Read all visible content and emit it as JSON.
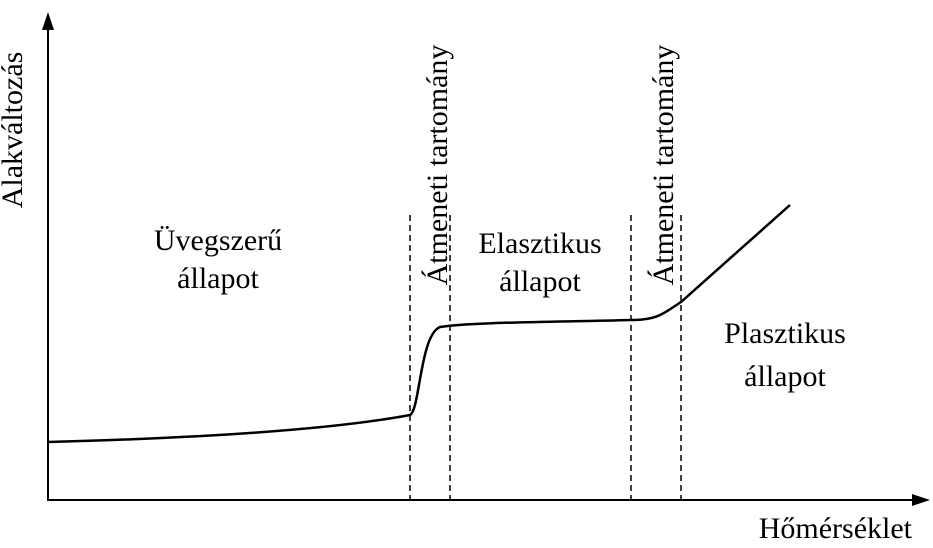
{
  "axes": {
    "y_label": "Alakváltozás",
    "x_label": "Hőmérséklet"
  },
  "regions": [
    {
      "lines": [
        "Üvegszerű",
        "állapot"
      ]
    },
    {
      "lines": [
        "Elasztikus",
        "állapot"
      ]
    },
    {
      "lines": [
        "Plasztikus",
        "állapot"
      ]
    }
  ],
  "transitions": [
    "Átmeneti tartomány",
    "Átmeneti tartomány"
  ]
}
